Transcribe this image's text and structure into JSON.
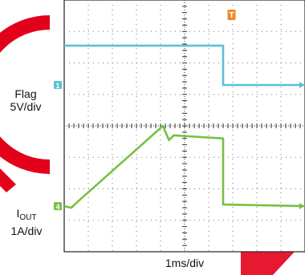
{
  "chart_data": {
    "type": "line",
    "title": "",
    "xlabel": "1ms/div",
    "xlim": [
      0,
      10
    ],
    "ylim": [
      -4,
      4
    ],
    "grid": true,
    "channels": [
      {
        "marker": "1",
        "label": "Flag",
        "scale_label": "5V/div",
        "color": "#5bc0d8",
        "x": [
          0,
          6.6,
          6.6,
          10
        ],
        "y": [
          2.55,
          2.55,
          1.3,
          1.3
        ]
      },
      {
        "marker": "4",
        "label_main": "I",
        "label_sub": "OUT",
        "scale_label": "1A/div",
        "color": "#76c043",
        "x": [
          0,
          0.3,
          0.5,
          4.1,
          4.35,
          4.55,
          6.6,
          6.6,
          10
        ],
        "y": [
          -2.55,
          -2.6,
          -2.45,
          0.0,
          -0.45,
          -0.3,
          -0.4,
          -2.5,
          -2.55
        ]
      }
    ],
    "trigger_marker": "T",
    "trigger_color": "#f08a2a",
    "watermark_color": "#e3001b"
  }
}
